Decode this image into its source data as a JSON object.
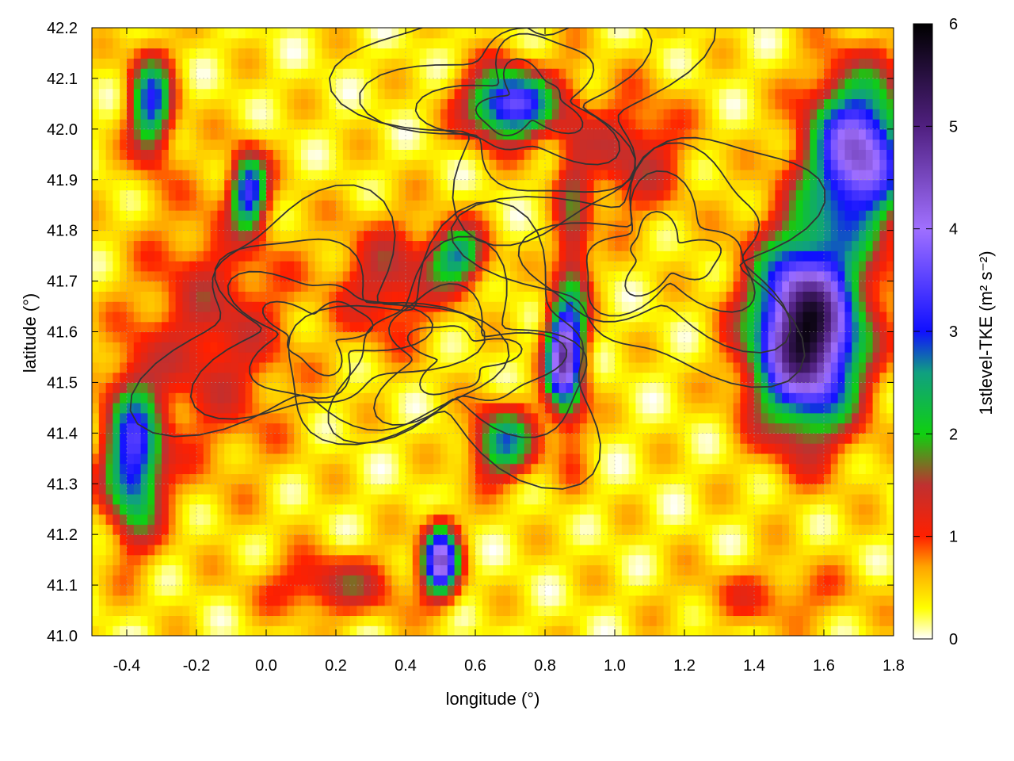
{
  "chart_data": {
    "type": "heatmap",
    "title": "",
    "xlabel": "longitude (°)",
    "ylabel": "latitude (°)",
    "xlim": [
      -0.5,
      1.8
    ],
    "ylim": [
      41.0,
      42.2
    ],
    "x_ticks": [
      "-0.4",
      "-0.2",
      "0.0",
      "0.2",
      "0.4",
      "0.6",
      "0.8",
      "1.0",
      "1.2",
      "1.4",
      "1.6",
      "1.8"
    ],
    "x_tick_values": [
      -0.4,
      -0.2,
      0.0,
      0.2,
      0.4,
      0.6,
      0.8,
      1.0,
      1.2,
      1.4,
      1.6,
      1.8
    ],
    "y_ticks": [
      "41.0",
      "41.1",
      "41.2",
      "41.3",
      "41.4",
      "41.5",
      "41.6",
      "41.7",
      "41.8",
      "41.9",
      "42.0",
      "42.1",
      "42.2"
    ],
    "y_tick_values": [
      41.0,
      41.1,
      41.2,
      41.3,
      41.4,
      41.5,
      41.6,
      41.7,
      41.8,
      41.9,
      42.0,
      42.1,
      42.2
    ],
    "grid": true,
    "colorbar": {
      "label": "1stlevel-TKE (m² s⁻²)",
      "range": [
        0,
        6
      ],
      "ticks": [
        "0",
        "1",
        "2",
        "3",
        "4",
        "5",
        "6"
      ],
      "tick_values": [
        0,
        1,
        2,
        3,
        4,
        5,
        6
      ],
      "stops": [
        {
          "v": 0.0,
          "color": "#ffffff"
        },
        {
          "v": 0.3,
          "color": "#ffff00"
        },
        {
          "v": 0.7,
          "color": "#ffa500"
        },
        {
          "v": 1.0,
          "color": "#ff2000"
        },
        {
          "v": 1.5,
          "color": "#c03030"
        },
        {
          "v": 2.0,
          "color": "#10d010"
        },
        {
          "v": 2.6,
          "color": "#10a080"
        },
        {
          "v": 3.0,
          "color": "#1010ff"
        },
        {
          "v": 4.0,
          "color": "#a070ff"
        },
        {
          "v": 5.0,
          "color": "#502080"
        },
        {
          "v": 6.0,
          "color": "#000000"
        }
      ]
    },
    "field_features": [
      {
        "lon": 0.85,
        "lat": 41.55,
        "sx": 0.05,
        "sy": 0.1,
        "v": 3.6
      },
      {
        "lon": 0.5,
        "lat": 41.15,
        "sx": 0.05,
        "sy": 0.07,
        "v": 3.8
      },
      {
        "lon": -0.38,
        "lat": 41.35,
        "sx": 0.08,
        "sy": 0.15,
        "v": 3.0
      },
      {
        "lon": -0.33,
        "lat": 42.05,
        "sx": 0.06,
        "sy": 0.1,
        "v": 2.6
      },
      {
        "lon": -0.05,
        "lat": 41.88,
        "sx": 0.05,
        "sy": 0.07,
        "v": 2.8
      },
      {
        "lon": 0.55,
        "lat": 41.75,
        "sx": 0.08,
        "sy": 0.06,
        "v": 2.2
      },
      {
        "lon": 0.68,
        "lat": 41.38,
        "sx": 0.09,
        "sy": 0.07,
        "v": 2.3
      },
      {
        "lon": 1.55,
        "lat": 41.6,
        "sx": 0.15,
        "sy": 0.18,
        "v": 5.5
      },
      {
        "lon": 1.7,
        "lat": 41.95,
        "sx": 0.14,
        "sy": 0.15,
        "v": 4.0
      },
      {
        "lon": 0.7,
        "lat": 42.05,
        "sx": 0.12,
        "sy": 0.07,
        "v": 3.4
      },
      {
        "lon": -0.15,
        "lat": 41.6,
        "sx": 0.22,
        "sy": 0.25,
        "v": 1.0
      },
      {
        "lon": 0.35,
        "lat": 41.7,
        "sx": 0.15,
        "sy": 0.12,
        "v": 1.1
      },
      {
        "lon": 0.88,
        "lat": 41.7,
        "sx": 0.05,
        "sy": 0.3,
        "v": 1.3
      },
      {
        "lon": 1.05,
        "lat": 41.95,
        "sx": 0.15,
        "sy": 0.12,
        "v": 1.1
      },
      {
        "lon": 0.2,
        "lat": 41.1,
        "sx": 0.2,
        "sy": 0.06,
        "v": 1.1
      },
      {
        "lon": 1.45,
        "lat": 41.08,
        "sx": 0.25,
        "sy": 0.06,
        "v": 0.6
      }
    ],
    "contour_levels": [
      0.25,
      0.45,
      0.65,
      0.85
    ]
  }
}
